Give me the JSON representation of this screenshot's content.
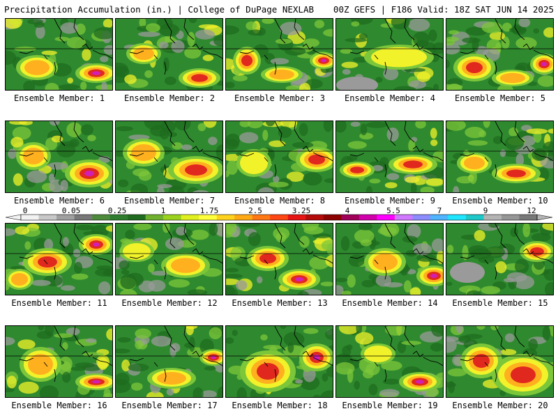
{
  "header": {
    "title": "Precipitation Accumulation (in.) | College of DuPage NEXLAB",
    "run_info": "00Z GEFS | F186 Valid: 18Z SAT JUN 14 2025"
  },
  "panels": [
    {
      "label": "Ensemble Member: 1"
    },
    {
      "label": "Ensemble Member: 2"
    },
    {
      "label": "Ensemble Member: 3"
    },
    {
      "label": "Ensemble Member: 4"
    },
    {
      "label": "Ensemble Member: 5"
    },
    {
      "label": "Ensemble Member: 6"
    },
    {
      "label": "Ensemble Member: 7"
    },
    {
      "label": "Ensemble Member: 8"
    },
    {
      "label": "Ensemble Member: 9"
    },
    {
      "label": "Ensemble Member: 10"
    },
    {
      "label": "Ensemble Member: 11"
    },
    {
      "label": "Ensemble Member: 12"
    },
    {
      "label": "Ensemble Member: 13"
    },
    {
      "label": "Ensemble Member: 14"
    },
    {
      "label": "Ensemble Member: 15"
    },
    {
      "label": "Ensemble Member: 16"
    },
    {
      "label": "Ensemble Member: 17"
    },
    {
      "label": "Ensemble Member: 18"
    },
    {
      "label": "Ensemble Member: 19"
    },
    {
      "label": "Ensemble Member: 20"
    }
  ],
  "colorbar": {
    "tick_labels": [
      "0",
      "0.05",
      "0.25",
      "1",
      "1.75",
      "2.5",
      "3.25",
      "4",
      "5.5",
      "7",
      "9",
      "12"
    ],
    "colors": [
      "#f2f2f2",
      "#c8c8c8",
      "#a0a0a0",
      "#787878",
      "#4e8a3c",
      "#2e7d2e",
      "#1f6b1f",
      "#6fb02e",
      "#9bd21e",
      "#e0f01e",
      "#ffff3c",
      "#ffd21e",
      "#ffaa14",
      "#ff7814",
      "#ff4614",
      "#e61414",
      "#b40a0a",
      "#8c0000",
      "#a0005a",
      "#d200aa",
      "#ff00ff",
      "#d078ff",
      "#8c8cff",
      "#50b4ff",
      "#1ee6ff",
      "#1ec8c8",
      "#b4b4b4",
      "#969696",
      "#787878"
    ]
  },
  "palette": {
    "green": "#2f8a2f",
    "dark_green": "#1f6b1f",
    "light_green": "#7cc63a",
    "yellow": "#f2f22a",
    "orange": "#ffb01e",
    "red": "#e0281e",
    "magenta": "#d21eb4",
    "gray": "#9a9a9a"
  }
}
